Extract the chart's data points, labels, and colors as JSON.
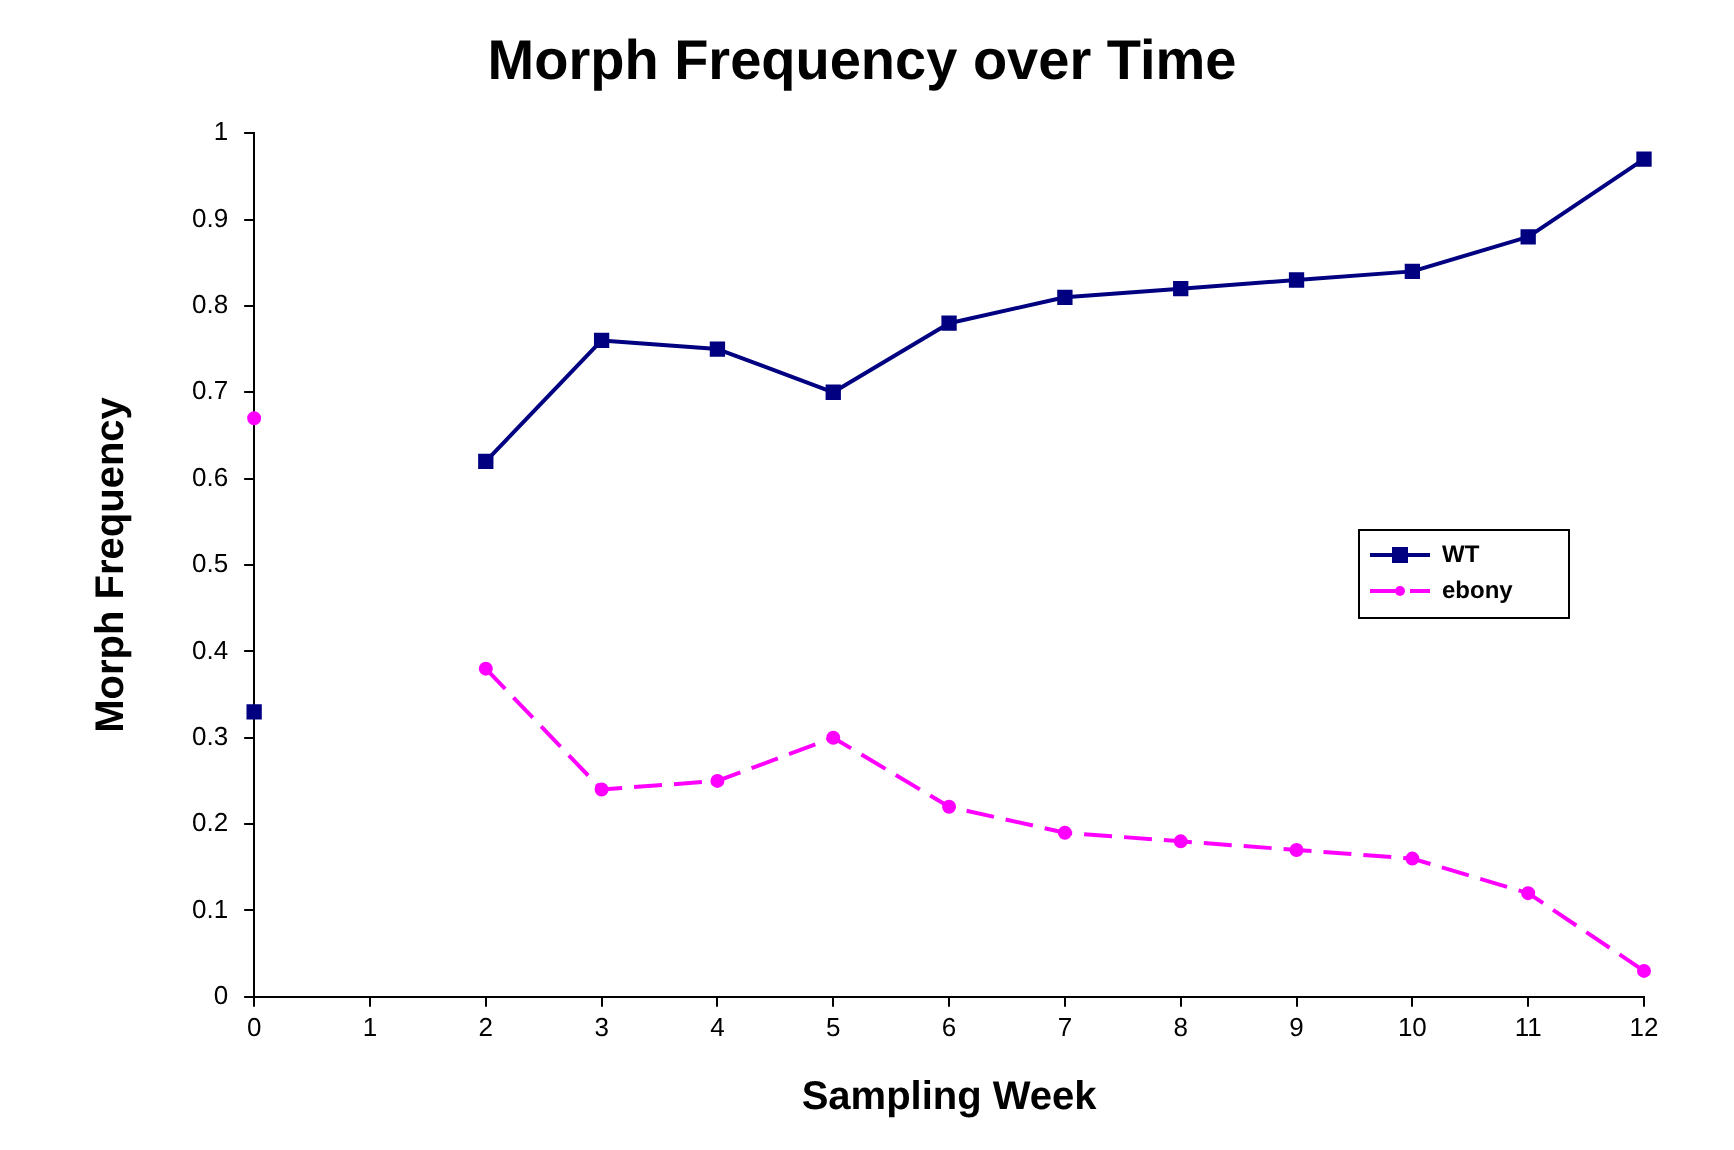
{
  "chart_data": {
    "type": "line",
    "title": "Morph Frequency over Time",
    "xlabel": "Sampling Week",
    "ylabel": "Morph Frequency",
    "x": [
      0,
      1,
      2,
      3,
      4,
      5,
      6,
      7,
      8,
      9,
      10,
      11,
      12
    ],
    "series": [
      {
        "name": "WT",
        "color": "#000080",
        "marker": "square",
        "line_style": "solid",
        "values": [
          0.33,
          null,
          0.62,
          0.76,
          0.75,
          0.7,
          0.78,
          0.81,
          0.82,
          0.83,
          0.84,
          0.88,
          0.97
        ]
      },
      {
        "name": "ebony",
        "color": "#ff00ff",
        "marker": "circle",
        "line_style": "dashed",
        "values": [
          0.67,
          null,
          0.38,
          0.24,
          0.25,
          0.3,
          0.22,
          0.19,
          0.18,
          0.17,
          0.16,
          0.12,
          0.03
        ]
      }
    ],
    "xlim": [
      0,
      12
    ],
    "xticks": [
      0,
      1,
      2,
      3,
      4,
      5,
      6,
      7,
      8,
      9,
      10,
      11,
      12
    ],
    "ylim": [
      0,
      1
    ],
    "yticks": [
      0,
      0.1,
      0.2,
      0.3,
      0.4,
      0.5,
      0.6,
      0.7,
      0.8,
      0.9,
      1
    ],
    "grid": false,
    "legend": "right"
  }
}
